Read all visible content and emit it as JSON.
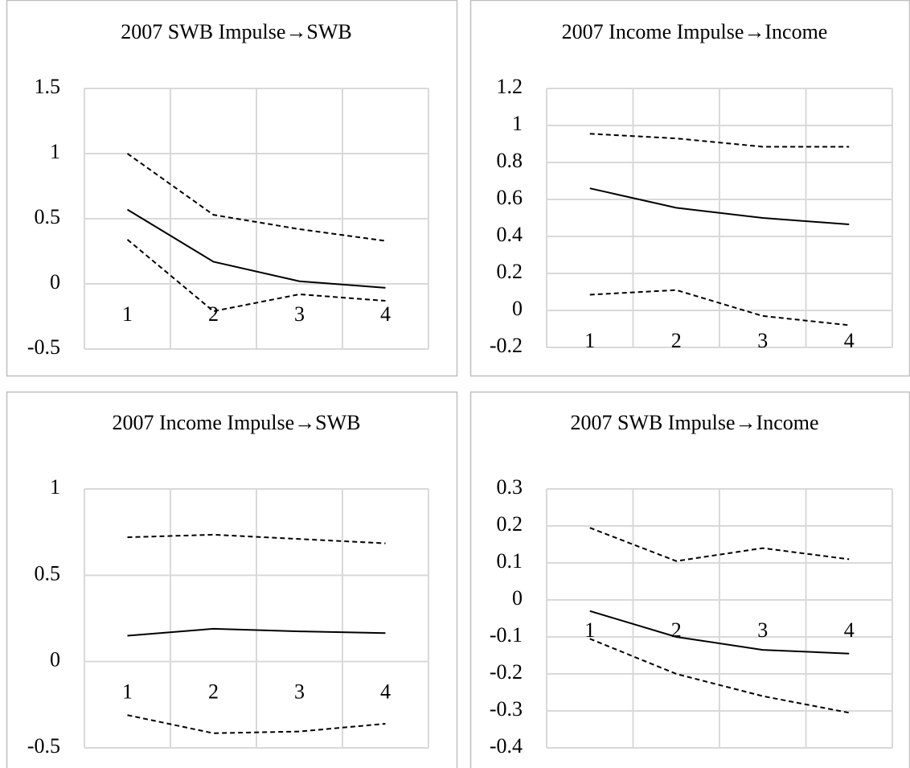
{
  "chart_data": [
    {
      "type": "line",
      "title": "2007 SWB Impulse→SWB",
      "categories": [
        "1",
        "2",
        "3",
        "4"
      ],
      "series": [
        {
          "color": "#000000",
          "linestyle": "dashed",
          "values": [
            1.0,
            0.53,
            0.42,
            0.33
          ]
        },
        {
          "color": "#000000",
          "linestyle": "solid",
          "values": [
            0.57,
            0.17,
            0.02,
            -0.03
          ]
        },
        {
          "color": "#000000",
          "linestyle": "dashed",
          "values": [
            0.34,
            -0.21,
            -0.08,
            -0.13
          ]
        }
      ],
      "ylim": [
        -0.5,
        1.5
      ],
      "yticks": [
        -0.5,
        0,
        0.5,
        1,
        1.5
      ],
      "grid": true
    },
    {
      "type": "line",
      "title": "2007 Income Impulse→Income",
      "categories": [
        "1",
        "2",
        "3",
        "4"
      ],
      "series": [
        {
          "color": "#000000",
          "linestyle": "dashed",
          "values": [
            0.955,
            0.93,
            0.885,
            0.885
          ]
        },
        {
          "color": "#000000",
          "linestyle": "solid",
          "values": [
            0.66,
            0.555,
            0.5,
            0.465
          ]
        },
        {
          "color": "#000000",
          "linestyle": "dashed",
          "values": [
            0.085,
            0.11,
            -0.03,
            -0.08
          ]
        }
      ],
      "ylim": [
        -0.2,
        1.2
      ],
      "yticks": [
        -0.2,
        0,
        0.2,
        0.4,
        0.6,
        0.8,
        1,
        1.2
      ],
      "grid": true
    },
    {
      "type": "line",
      "title": "2007 Income Impulse→SWB",
      "categories": [
        "1",
        "2",
        "3",
        "4"
      ],
      "series": [
        {
          "color": "#000000",
          "linestyle": "dashed",
          "values": [
            0.72,
            0.735,
            0.71,
            0.685
          ]
        },
        {
          "color": "#000000",
          "linestyle": "solid",
          "values": [
            0.15,
            0.19,
            0.175,
            0.165
          ]
        },
        {
          "color": "#000000",
          "linestyle": "dashed",
          "values": [
            -0.31,
            -0.415,
            -0.405,
            -0.36
          ]
        }
      ],
      "ylim": [
        -0.5,
        1
      ],
      "yticks": [
        -0.5,
        0,
        0.5,
        1
      ],
      "grid": true
    },
    {
      "type": "line",
      "title": "2007 SWB Impulse→Income",
      "categories": [
        "1",
        "2",
        "3",
        "4"
      ],
      "series": [
        {
          "color": "#000000",
          "linestyle": "dashed",
          "values": [
            0.195,
            0.105,
            0.14,
            0.11
          ]
        },
        {
          "color": "#000000",
          "linestyle": "solid",
          "values": [
            -0.03,
            -0.1,
            -0.135,
            -0.145
          ]
        },
        {
          "color": "#000000",
          "linestyle": "dashed",
          "values": [
            -0.105,
            -0.2,
            -0.26,
            -0.305
          ]
        }
      ],
      "ylim": [
        -0.4,
        0.3
      ],
      "yticks": [
        -0.4,
        -0.3,
        -0.2,
        -0.1,
        0,
        0.1,
        0.2,
        0.3
      ],
      "grid": true
    }
  ]
}
